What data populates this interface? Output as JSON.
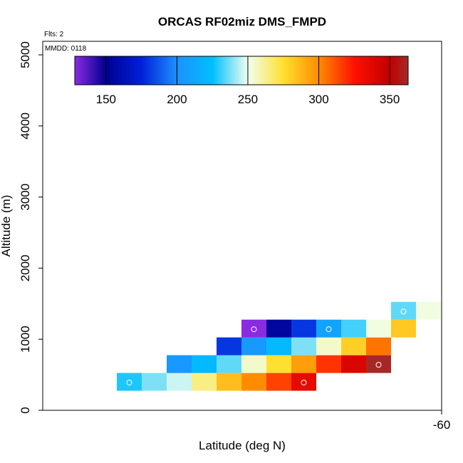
{
  "chart_data": {
    "type": "heatmap",
    "title": "ORCAS RF02miz DMS_FMPD",
    "flights_note": "Flts: 2",
    "date_note": "MMDD: 0118",
    "xlabel": "Latitude (deg N)",
    "ylabel": "Altitude (m)",
    "x_tick_labels": [
      "-60"
    ],
    "y_tick_labels": [
      "0",
      "1000",
      "2000",
      "3000",
      "4000",
      "5000"
    ],
    "ylim": [
      0,
      5000
    ],
    "colorbar": {
      "range": [
        128,
        363
      ],
      "tick_values": [
        150,
        200,
        250,
        300,
        350
      ],
      "tick_labels": [
        "150",
        "200",
        "250",
        "300",
        "350"
      ],
      "stops": [
        {
          "v": 128,
          "color": "#8a2be2"
        },
        {
          "v": 150,
          "color": "#000090"
        },
        {
          "v": 175,
          "color": "#0020d8"
        },
        {
          "v": 200,
          "color": "#1e90ff"
        },
        {
          "v": 225,
          "color": "#00bfff"
        },
        {
          "v": 250,
          "color": "#f0fff0"
        },
        {
          "v": 275,
          "color": "#ffe030"
        },
        {
          "v": 300,
          "color": "#ff8c00"
        },
        {
          "v": 325,
          "color": "#ff1000"
        },
        {
          "v": 350,
          "color": "#c00000"
        },
        {
          "v": 363,
          "color": "#a52a2a"
        }
      ]
    },
    "cells_description": "gridded values by column index (latitude bin) and altitude bin",
    "cells": [
      {
        "col": 0,
        "alt": 400,
        "value": 228,
        "marker": true
      },
      {
        "col": 1,
        "alt": 400,
        "value": 238,
        "marker": false
      },
      {
        "col": 2,
        "alt": 400,
        "value": 246,
        "marker": false
      },
      {
        "col": 3,
        "alt": 400,
        "value": 264,
        "marker": false
      },
      {
        "col": 4,
        "alt": 400,
        "value": 285,
        "marker": false
      },
      {
        "col": 5,
        "alt": 400,
        "value": 300,
        "marker": false
      },
      {
        "col": 6,
        "alt": 400,
        "value": 315,
        "marker": false
      },
      {
        "col": 7,
        "alt": 400,
        "value": 335,
        "marker": true
      },
      {
        "col": 2,
        "alt": 650,
        "value": 205,
        "marker": false
      },
      {
        "col": 3,
        "alt": 650,
        "value": 222,
        "marker": false
      },
      {
        "col": 4,
        "alt": 650,
        "value": 235,
        "marker": false
      },
      {
        "col": 5,
        "alt": 650,
        "value": 255,
        "marker": false
      },
      {
        "col": 6,
        "alt": 650,
        "value": 275,
        "marker": false
      },
      {
        "col": 7,
        "alt": 650,
        "value": 295,
        "marker": false
      },
      {
        "col": 8,
        "alt": 650,
        "value": 318,
        "marker": false
      },
      {
        "col": 9,
        "alt": 650,
        "value": 340,
        "marker": false
      },
      {
        "col": 10,
        "alt": 650,
        "value": 362,
        "marker": true
      },
      {
        "col": 4,
        "alt": 900,
        "value": 180,
        "marker": false
      },
      {
        "col": 5,
        "alt": 900,
        "value": 205,
        "marker": false
      },
      {
        "col": 6,
        "alt": 900,
        "value": 222,
        "marker": false
      },
      {
        "col": 7,
        "alt": 900,
        "value": 238,
        "marker": false
      },
      {
        "col": 8,
        "alt": 900,
        "value": 255,
        "marker": false
      },
      {
        "col": 9,
        "alt": 900,
        "value": 280,
        "marker": false
      },
      {
        "col": 10,
        "alt": 900,
        "value": 305,
        "marker": false
      },
      {
        "col": 5,
        "alt": 1150,
        "value": 128,
        "marker": true
      },
      {
        "col": 6,
        "alt": 1150,
        "value": 155,
        "marker": false
      },
      {
        "col": 7,
        "alt": 1150,
        "value": 180,
        "marker": false
      },
      {
        "col": 8,
        "alt": 1150,
        "value": 210,
        "marker": true
      },
      {
        "col": 9,
        "alt": 1150,
        "value": 232,
        "marker": false
      },
      {
        "col": 10,
        "alt": 1150,
        "value": 252,
        "marker": false
      },
      {
        "col": 11,
        "alt": 1150,
        "value": 282,
        "marker": false
      },
      {
        "col": 11,
        "alt": 1400,
        "value": 235,
        "marker": true
      },
      {
        "col": 12,
        "alt": 1400,
        "value": 252,
        "marker": false
      }
    ]
  }
}
